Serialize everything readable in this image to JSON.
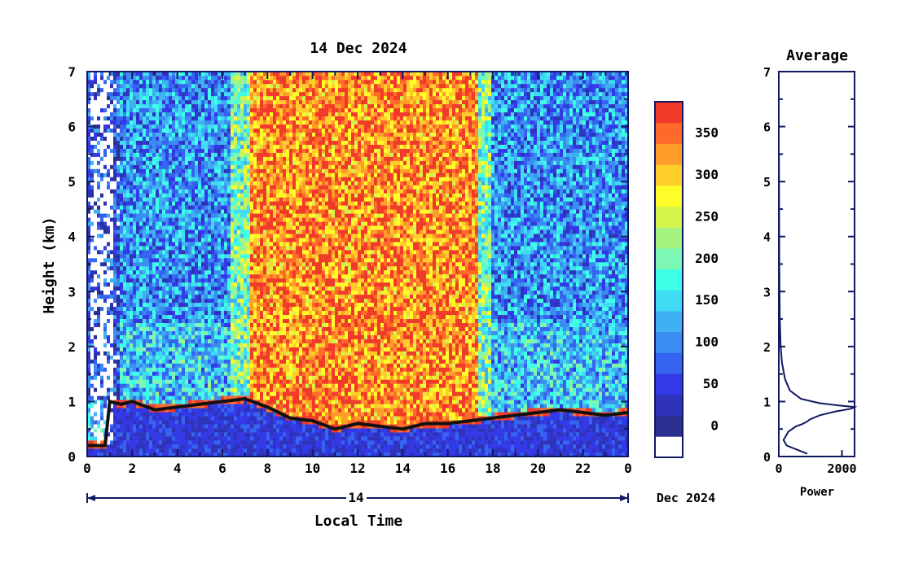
{
  "colors": {
    "axis": "#101860",
    "text": "#000000",
    "colorbar": [
      "#ffffff",
      "#2b2f8f",
      "#2f33b9",
      "#3339e6",
      "#3564f0",
      "#3b8cf0",
      "#3fb1f2",
      "#3fdcf3",
      "#3fffe6",
      "#7cf7b4",
      "#a6f37f",
      "#d6f54a",
      "#fffe2a",
      "#ffce2a",
      "#ff9c2a",
      "#ff6a2a",
      "#f03a2a"
    ]
  },
  "chart_data": [
    {
      "type": "heatmap",
      "title": "14 Dec 2024",
      "xlabel": "Local Time",
      "ylabel": "Height (km)",
      "x_ticks": [
        "0",
        "2",
        "4",
        "6",
        "8",
        "10",
        "12",
        "14",
        "16",
        "18",
        "20",
        "22",
        "0"
      ],
      "y_ticks": [
        "0",
        "1",
        "2",
        "3",
        "4",
        "5",
        "6",
        "7"
      ],
      "xlim": [
        0,
        24
      ],
      "ylim": [
        0,
        7
      ],
      "date_bar": {
        "day_label": "14",
        "month_label": "Dec 2024"
      },
      "colorbar": {
        "tick_labels": [
          "0",
          "50",
          "100",
          "150",
          "200",
          "250",
          "300",
          "350"
        ],
        "range": [
          0,
          380
        ]
      },
      "features": {
        "high_band_hours": [
          7.3,
          17.3
        ],
        "boundary_layer_trace": [
          [
            0.0,
            0.15
          ],
          [
            0.8,
            0.15
          ],
          [
            1.0,
            0.95
          ],
          [
            1.5,
            0.9
          ],
          [
            2.0,
            0.95
          ],
          [
            3.0,
            0.8
          ],
          [
            4.0,
            0.85
          ],
          [
            5.0,
            0.9
          ],
          [
            6.0,
            0.95
          ],
          [
            7.0,
            1.0
          ],
          [
            8.0,
            0.85
          ],
          [
            9.0,
            0.65
          ],
          [
            10.0,
            0.6
          ],
          [
            11.0,
            0.45
          ],
          [
            12.0,
            0.55
          ],
          [
            13.0,
            0.5
          ],
          [
            14.0,
            0.45
          ],
          [
            15.0,
            0.55
          ],
          [
            16.0,
            0.55
          ],
          [
            17.0,
            0.6
          ],
          [
            18.0,
            0.65
          ],
          [
            19.0,
            0.7
          ],
          [
            20.0,
            0.75
          ],
          [
            21.0,
            0.8
          ],
          [
            22.0,
            0.75
          ],
          [
            23.0,
            0.7
          ],
          [
            24.0,
            0.75
          ]
        ]
      }
    },
    {
      "type": "line",
      "title": "Average",
      "xlabel": "Power",
      "ylabel": "",
      "x_ticks": [
        "0",
        "2000"
      ],
      "y_ticks": [
        "0",
        "1",
        "2",
        "3",
        "4",
        "5",
        "6",
        "7"
      ],
      "xlim": [
        0,
        2400
      ],
      "ylim": [
        0,
        7
      ],
      "series": [
        {
          "x": [
            900,
            600,
            250,
            150,
            300,
            550,
            700,
            850,
            1000,
            1300,
            1800,
            2300,
            2400,
            1900,
            1300,
            700,
            350,
            200,
            100,
            60,
            30,
            15,
            5
          ],
          "y": [
            0.05,
            0.12,
            0.2,
            0.3,
            0.45,
            0.55,
            0.58,
            0.62,
            0.68,
            0.75,
            0.82,
            0.87,
            0.9,
            0.93,
            0.97,
            1.05,
            1.2,
            1.4,
            1.7,
            2.0,
            2.5,
            3.5,
            5.5
          ]
        }
      ]
    }
  ]
}
